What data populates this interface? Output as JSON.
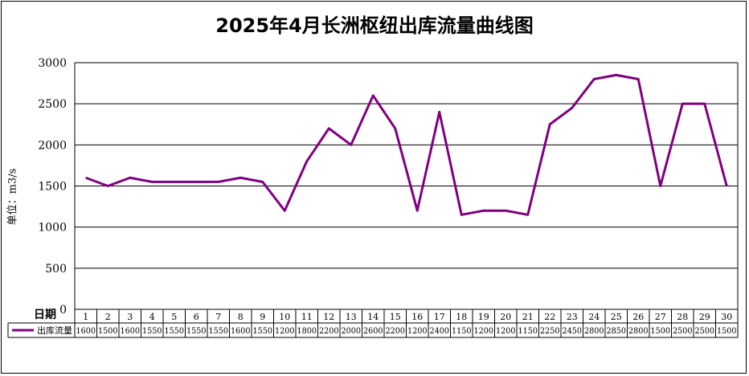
{
  "chart_data": {
    "type": "line",
    "title": "2025年4月长洲枢纽出库流量曲线图",
    "ylabel": "单位：m3/s",
    "xlabel": "日期",
    "ylim": [
      0,
      3000
    ],
    "yticks": [
      0,
      500,
      1000,
      1500,
      2000,
      2500,
      3000
    ],
    "grid": true,
    "legend": "data-table-left",
    "categories": [
      "1",
      "2",
      "3",
      "4",
      "5",
      "6",
      "7",
      "8",
      "9",
      "10",
      "11",
      "12",
      "13",
      "14",
      "15",
      "16",
      "17",
      "18",
      "19",
      "20",
      "21",
      "22",
      "23",
      "24",
      "25",
      "26",
      "27",
      "28",
      "29",
      "30"
    ],
    "series": [
      {
        "name": "出库流量",
        "color": "#800080",
        "values": [
          1600,
          1500,
          1600,
          1550,
          1550,
          1550,
          1550,
          1600,
          1550,
          1200,
          1800,
          2200,
          2000,
          2600,
          2200,
          1200,
          2400,
          1150,
          1200,
          1200,
          1150,
          2250,
          2450,
          2800,
          2850,
          2800,
          1500,
          2500,
          2500,
          1500
        ]
      }
    ]
  }
}
